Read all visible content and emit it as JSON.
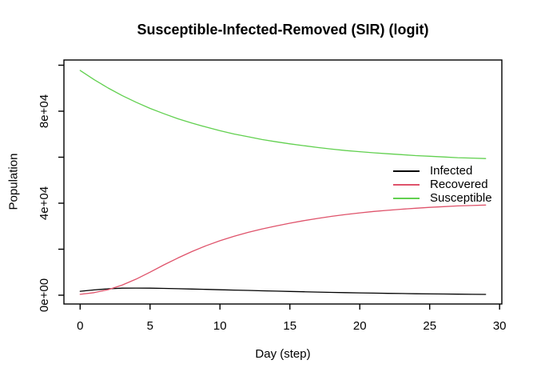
{
  "window_title": "",
  "chart_data": {
    "type": "line",
    "title": "Susceptible-Infected-Removed (SIR) (logit)",
    "xlabel": "Day (step)",
    "ylabel": "Population",
    "grid": false,
    "legend_position": "right-middle",
    "xlim": [
      -1.16,
      30.16
    ],
    "ylim": [
      -3826,
      102260
    ],
    "x_ticks": [
      0,
      5,
      10,
      15,
      20,
      25,
      30
    ],
    "y_ticks": [
      0,
      20000,
      40000,
      60000,
      80000,
      100000
    ],
    "y_tick_labels": {
      "0": "0e+00",
      "40000": "4e+04",
      "80000": "8e+04"
    },
    "x": [
      0,
      1,
      2,
      3,
      4,
      5,
      6,
      7,
      8,
      9,
      10,
      11,
      12,
      13,
      14,
      15,
      16,
      17,
      18,
      19,
      20,
      21,
      22,
      23,
      24,
      25,
      26,
      27,
      28,
      29
    ],
    "series": [
      {
        "name": "Infected",
        "color": "#000000",
        "values": [
          1700,
          2300,
          2800,
          3050,
          3100,
          3050,
          2950,
          2820,
          2680,
          2530,
          2380,
          2230,
          2080,
          1930,
          1780,
          1630,
          1490,
          1360,
          1230,
          1110,
          1000,
          900,
          810,
          720,
          640,
          570,
          510,
          450,
          400,
          360
        ]
      },
      {
        "name": "Recovered",
        "color": "#DF536B",
        "values": [
          400,
          1100,
          2400,
          4400,
          7000,
          10000,
          13200,
          16200,
          19000,
          21500,
          23700,
          25600,
          27300,
          28800,
          30100,
          31300,
          32400,
          33400,
          34300,
          35100,
          35800,
          36400,
          36900,
          37400,
          37800,
          38200,
          38500,
          38800,
          39000,
          39200
        ]
      },
      {
        "name": "Susceptible",
        "color": "#61D04F",
        "values": [
          97700,
          93700,
          90100,
          86800,
          83900,
          81200,
          78900,
          76700,
          74800,
          73100,
          71500,
          70100,
          68900,
          67700,
          66700,
          65800,
          65000,
          64200,
          63500,
          62900,
          62400,
          61900,
          61500,
          61100,
          60700,
          60400,
          60100,
          59800,
          59600,
          59400
        ]
      }
    ]
  }
}
